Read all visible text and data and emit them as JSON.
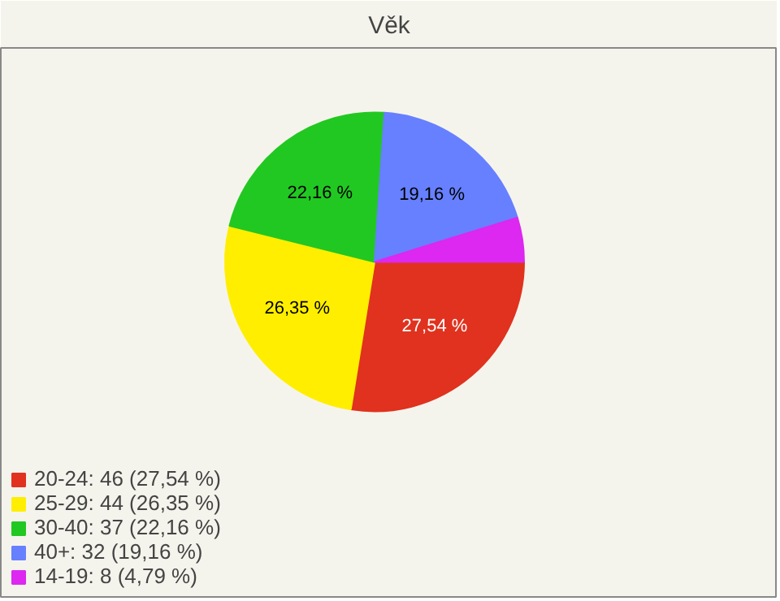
{
  "chart_data": {
    "type": "pie",
    "title": "Věk",
    "categories": [
      "20-24: 46 (27,54 %)",
      "25-29: 44 (26,35 %)",
      "30-40: 37 (22,16 %)",
      "40+: 32 (19,16 %)",
      "14-19: 8 (4,79 %)"
    ],
    "values": [
      27.54,
      26.35,
      22.16,
      19.16,
      4.79
    ],
    "colors": [
      "#e0321e",
      "#ffee00",
      "#22c822",
      "#6680ff",
      "#dc28f0"
    ],
    "value_labels": [
      "27,54 %",
      "26,35 %",
      "22,16 %",
      "19,16 %",
      null
    ],
    "legend": "bottom left"
  }
}
